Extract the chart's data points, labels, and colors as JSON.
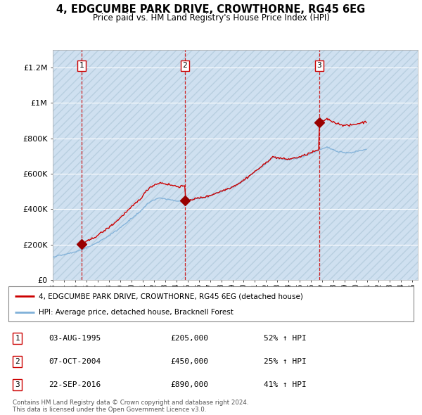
{
  "title1": "4, EDGCUMBE PARK DRIVE, CROWTHORNE, RG45 6EG",
  "title2": "Price paid vs. HM Land Registry's House Price Index (HPI)",
  "ylabel_ticks": [
    "£0",
    "£200K",
    "£400K",
    "£600K",
    "£800K",
    "£1M",
    "£1.2M"
  ],
  "ytick_values": [
    0,
    200000,
    400000,
    600000,
    800000,
    1000000,
    1200000
  ],
  "ylim": [
    0,
    1300000
  ],
  "purchases": [
    {
      "date_num": 1995.58,
      "price": 205000,
      "label": "1"
    },
    {
      "date_num": 2004.77,
      "price": 450000,
      "label": "2"
    },
    {
      "date_num": 2016.72,
      "price": 890000,
      "label": "3"
    }
  ],
  "legend_entries": [
    {
      "label": "4, EDGCUMBE PARK DRIVE, CROWTHORNE, RG45 6EG (detached house)",
      "color": "#cc0000",
      "lw": 2
    },
    {
      "label": "HPI: Average price, detached house, Bracknell Forest",
      "color": "#6699cc",
      "lw": 2
    }
  ],
  "table_rows": [
    {
      "num": "1",
      "date": "03-AUG-1995",
      "price": "£205,000",
      "pct": "52% ↑ HPI"
    },
    {
      "num": "2",
      "date": "07-OCT-2004",
      "price": "£450,000",
      "pct": "25% ↑ HPI"
    },
    {
      "num": "3",
      "date": "22-SEP-2016",
      "price": "£890,000",
      "pct": "41% ↑ HPI"
    }
  ],
  "footnote1": "Contains HM Land Registry data © Crown copyright and database right 2024.",
  "footnote2": "This data is licensed under the Open Government Licence v3.0.",
  "red_line_color": "#cc0000",
  "blue_line_color": "#7fb0d8",
  "vline_color": "#cc0000",
  "purchase_marker_color": "#990000",
  "xlabel_start": 1993,
  "xlabel_end": 2025,
  "hpi_monthly": [
    130000,
    132000,
    133500,
    135000,
    136000,
    137000,
    138000,
    139000,
    140000,
    141000,
    142000,
    143000,
    144000,
    145000,
    146500,
    148000,
    149000,
    150000,
    151500,
    153000,
    154000,
    155000,
    156500,
    158000,
    159000,
    161000,
    163000,
    165000,
    167000,
    169000,
    171000,
    173000,
    175000,
    177000,
    179000,
    181000,
    183000,
    185000,
    187500,
    190000,
    192000,
    194000,
    196500,
    199000,
    202000,
    205000,
    208000,
    211000,
    214000,
    217000,
    220000,
    223000,
    226000,
    229000,
    232000,
    235000,
    238000,
    241000,
    244500,
    248000,
    251000,
    254500,
    258000,
    262000,
    265000,
    268000,
    272000,
    276000,
    280000,
    284000,
    288000,
    292000,
    296000,
    300000,
    305000,
    310000,
    314000,
    318000,
    322000,
    326000,
    330000,
    334000,
    338000,
    342000,
    346000,
    350000,
    355000,
    360000,
    364000,
    368000,
    372000,
    376000,
    380000,
    385000,
    390000,
    395000,
    400000,
    406000,
    412000,
    418000,
    424000,
    430000,
    434000,
    438000,
    442000,
    445000,
    448000,
    450000,
    452000,
    454000,
    456000,
    458000,
    460000,
    461000,
    462000,
    463000,
    463000,
    462000,
    461000,
    460000,
    459000,
    458000,
    457000,
    456000,
    455000,
    454000,
    453000,
    452000,
    451000,
    450000,
    449000,
    448000,
    447000,
    446000,
    446000,
    446000,
    446000,
    447000,
    447000,
    447000,
    448000,
    448000,
    448000,
    449000,
    449000,
    450000,
    451000,
    452000,
    453000,
    454000,
    455000,
    456000,
    457000,
    458000,
    459000,
    460000,
    461000,
    462000,
    463000,
    464000,
    465000,
    466000,
    467000,
    468000,
    469000,
    470000,
    472000,
    474000,
    476000,
    478000,
    480000,
    482000,
    484000,
    486000,
    488000,
    490000,
    492000,
    494000,
    496000,
    498000,
    500000,
    502000,
    504000,
    506000,
    508000,
    510000,
    512000,
    514000,
    516000,
    518000,
    520000,
    522000,
    524000,
    527000,
    530000,
    533000,
    536000,
    539000,
    542000,
    545000,
    548000,
    551000,
    554000,
    558000,
    562000,
    566000,
    570000,
    574000,
    578000,
    582000,
    586000,
    590000,
    594000,
    598000,
    602000,
    606000,
    610000,
    614000,
    618000,
    622000,
    626000,
    630000,
    634000,
    638000,
    642000,
    646000,
    650000,
    655000,
    660000,
    665000,
    670000,
    675000,
    680000,
    685000,
    688000,
    690000,
    692000,
    691000,
    690000,
    689000,
    688000,
    687000,
    686000,
    685000,
    684000,
    683000,
    682000,
    681000,
    680000,
    680000,
    680000,
    680000,
    680000,
    681000,
    682000,
    683000,
    684000,
    685000,
    686000,
    687000,
    688000,
    689000,
    690000,
    691000,
    692000,
    694000,
    696000,
    698000,
    700000,
    702000,
    704000,
    706000,
    708000,
    710000,
    712000,
    714000,
    716000,
    718000,
    720000,
    722000,
    724000,
    726000,
    728000,
    730000,
    732000,
    734000,
    736000,
    738000,
    740000,
    742000,
    744000,
    746000,
    748000,
    750000,
    748000,
    746000,
    744000,
    742000,
    740000,
    738000,
    736000,
    734000,
    732000,
    730000,
    728000,
    727000,
    726000,
    725000,
    724000,
    723000,
    722000,
    721000,
    720000,
    719000,
    719000,
    719000,
    719000,
    719000,
    720000,
    721000,
    722000,
    723000,
    724000,
    725000,
    726000,
    727000,
    728000,
    729000,
    730000,
    731000,
    732000,
    733000,
    734000,
    735000,
    736000,
    737000
  ]
}
